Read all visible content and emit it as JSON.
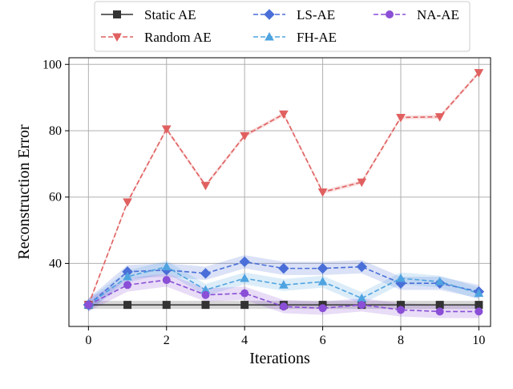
{
  "chart_data": {
    "type": "line",
    "xlabel": "Iterations",
    "ylabel": "Reconstruction Error",
    "xlim": [
      -0.5,
      10.3
    ],
    "ylim": [
      21,
      102
    ],
    "xticks": [
      0,
      2,
      4,
      6,
      8,
      10
    ],
    "yticks": [
      40,
      60,
      80,
      100
    ],
    "grid": true,
    "legend_position": "top, outside plot, 3 columns",
    "x": [
      0,
      1,
      2,
      3,
      4,
      5,
      6,
      7,
      8,
      9,
      10
    ],
    "series": [
      {
        "name": "Static AE",
        "color": "#333333",
        "dash": "solid",
        "marker": "square",
        "values": [
          27.5,
          27.5,
          27.5,
          27.5,
          27.5,
          27.5,
          27.5,
          27.5,
          27.5,
          27.5,
          27.5
        ],
        "band": 1.2
      },
      {
        "name": "Random AE",
        "color": "#e06060",
        "dash": "dashed",
        "marker": "triangle-down",
        "values": [
          27.5,
          58.5,
          80.5,
          63.5,
          78.5,
          85.0,
          61.5,
          64.5,
          84.0,
          84.2,
          97.5
        ],
        "band": 0.6
      },
      {
        "name": "LS-AE",
        "color": "#4a6fd8",
        "dash": "dashed",
        "marker": "diamond",
        "values": [
          27.5,
          37.5,
          38.0,
          37.0,
          40.5,
          38.5,
          38.5,
          39.0,
          34.0,
          34.0,
          31.5
        ],
        "band": 2.0
      },
      {
        "name": "FH-AE",
        "color": "#4ea3e0",
        "dash": "dashed",
        "marker": "triangle-up",
        "values": [
          27.5,
          36.0,
          39.0,
          32.0,
          35.5,
          33.5,
          34.5,
          29.5,
          35.5,
          34.5,
          31.0
        ],
        "band": 1.8
      },
      {
        "name": "NA-AE",
        "color": "#8a4fd6",
        "dash": "dashed",
        "marker": "circle",
        "values": [
          27.5,
          33.5,
          35.0,
          30.5,
          31.0,
          27.0,
          26.5,
          27.5,
          26.0,
          25.5,
          25.5
        ],
        "band": 2.0
      }
    ]
  }
}
